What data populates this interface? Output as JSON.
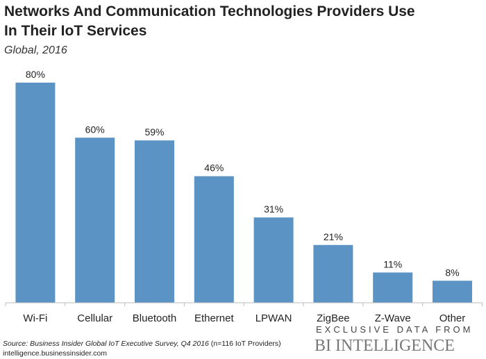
{
  "chart_data": {
    "type": "bar",
    "title": "Networks And Communication Technologies Providers Use In Their IoT Services",
    "subtitle": "Global, 2016",
    "categories": [
      "Wi-Fi",
      "Cellular",
      "Bluetooth",
      "Ethernet",
      "LPWAN",
      "ZigBee",
      "Z-Wave",
      "Other"
    ],
    "values": [
      80,
      60,
      59,
      46,
      31,
      21,
      11,
      8
    ],
    "data_labels": [
      "80%",
      "60%",
      "59%",
      "46%",
      "31%",
      "21%",
      "11%",
      "8%"
    ],
    "xlabel": "",
    "ylabel": "",
    "ylim": [
      0,
      80
    ],
    "grid": false,
    "bar_color": "#5b94c4"
  },
  "footer": {
    "source_italic": "Source: Business Insider Global IoT Executive Survey, Q4 2016",
    "source_note": " (n=116 IoT Providers)",
    "url": "intelligence.businessinsider.com",
    "brand_tagline": "EXCLUSIVE DATA FROM",
    "brand_name": "BI INTELLIGENCE"
  }
}
